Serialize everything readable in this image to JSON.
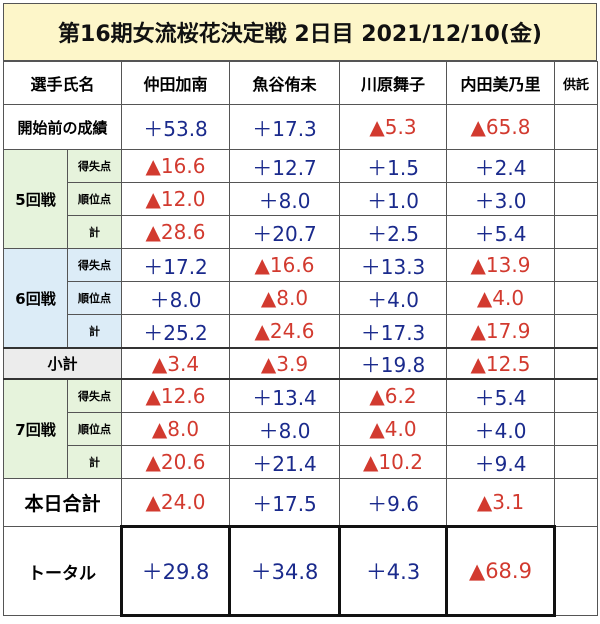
{
  "title": "第16期女流桜花決定戦 2日目 2021/12/10(金)",
  "header": [
    "選手氏名",
    "仲田加南",
    "魚谷侑未",
    "川原舞子",
    "内田美乃里",
    "供託"
  ],
  "start": {
    "label": "開始前の成績",
    "values": [
      "＋53.8",
      "＋17.3",
      "▲5.3",
      "▲65.8"
    ]
  },
  "rounds": [
    {
      "label": "5回戦",
      "rows": [
        {
          "label": "得失点",
          "values": [
            "▲16.6",
            "＋12.7",
            "＋1.5",
            "＋2.4"
          ]
        },
        {
          "label": "順位点",
          "values": [
            "▲12.0",
            "＋8.0",
            "＋1.0",
            "＋3.0"
          ]
        },
        {
          "label": "計",
          "values": [
            "▲28.6",
            "＋20.7",
            "＋2.5",
            "＋5.4"
          ]
        }
      ]
    },
    {
      "label": "6回戦",
      "rows": [
        {
          "label": "得失点",
          "values": [
            "＋17.2",
            "▲16.6",
            "＋13.3",
            "▲13.9"
          ]
        },
        {
          "label": "順位点",
          "values": [
            "＋8.0",
            "▲8.0",
            "＋4.0",
            "▲4.0"
          ]
        },
        {
          "label": "計",
          "values": [
            "＋25.2",
            "▲24.6",
            "＋17.3",
            "▲17.9"
          ]
        }
      ]
    },
    {
      "label": "7回戦",
      "rows": [
        {
          "label": "得失点",
          "values": [
            "▲12.6",
            "＋13.4",
            "▲6.2",
            "＋5.4"
          ]
        },
        {
          "label": "順位点",
          "values": [
            "▲8.0",
            "＋8.0",
            "▲4.0",
            "＋4.0"
          ]
        },
        {
          "label": "計",
          "values": [
            "▲20.6",
            "＋21.4",
            "▲10.2",
            "＋9.4"
          ]
        }
      ]
    }
  ],
  "subtotal": {
    "label": "小計",
    "values": [
      "▲3.4",
      "▲3.9",
      "＋19.8",
      "▲12.5"
    ]
  },
  "today": {
    "label": "本日合計",
    "values": [
      "▲24.0",
      "＋17.5",
      "＋9.6",
      "▲3.1"
    ]
  },
  "total": {
    "label": "トータル",
    "values": [
      "＋29.8",
      "＋34.8",
      "＋4.3",
      "▲68.9"
    ]
  }
}
